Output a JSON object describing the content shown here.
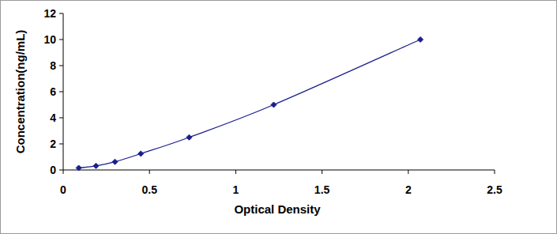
{
  "chart_data": {
    "type": "line",
    "x_label": "Optical Density",
    "y_label": "Concentration(ng/mL)",
    "x": [
      0.09,
      0.19,
      0.3,
      0.45,
      0.73,
      1.22,
      2.07
    ],
    "series": [
      {
        "name": null,
        "color": "#1a1f8c",
        "marker": "diamond",
        "line_style": "solid",
        "values": [
          0.156,
          0.312,
          0.625,
          1.25,
          2.5,
          5,
          10
        ]
      }
    ],
    "xlim": [
      0,
      2.5
    ],
    "xticks": [
      0,
      0.5,
      1,
      1.5,
      2,
      2.5
    ],
    "ylim": [
      0,
      12
    ],
    "yticks": [
      0,
      2,
      4,
      6,
      8,
      10,
      12
    ],
    "grid": false
  }
}
